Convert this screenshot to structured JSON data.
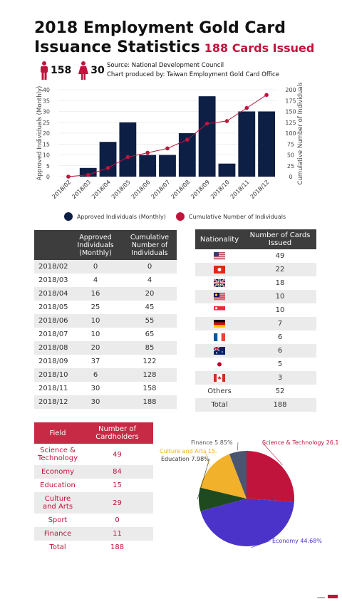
{
  "title": {
    "line1": "2018 Employment Gold Card",
    "line2": "Issuance Statistics",
    "sub": "188 Cards Issued"
  },
  "people": {
    "male": "158",
    "female": "30"
  },
  "source": {
    "line1": "Source: National Development Council",
    "line2": "Chart produced by: Taiwan Employment Gold Card Office"
  },
  "colors": {
    "bar": "#0e1f45",
    "line": "#c0143c",
    "accent": "#c72a45",
    "header": "#3d3d3d"
  },
  "chart_data": [
    {
      "type": "bar+line",
      "categories": [
        "2018/02",
        "2018/03",
        "2018/04",
        "2018/05",
        "2018/06",
        "2018/07",
        "2018/08",
        "2018/09",
        "2018/10",
        "2018/11",
        "2018/12"
      ],
      "series": [
        {
          "name": "Approved Individuals (Monthly)",
          "type": "bar",
          "axis": "left",
          "values": [
            0,
            4,
            16,
            25,
            10,
            10,
            20,
            37,
            6,
            30,
            30
          ]
        },
        {
          "name": "Cumulative Number of Individuals",
          "type": "line",
          "axis": "right",
          "values": [
            0,
            4,
            20,
            45,
            55,
            65,
            85,
            122,
            128,
            158,
            188
          ]
        }
      ],
      "ylabel": "Approved Individuals (Monthly)",
      "y2label": "Cumulative Number of Individuals",
      "ylim": [
        0,
        40
      ],
      "y2lim": [
        0,
        200
      ],
      "yticks": [
        "0",
        "5",
        "10",
        "15",
        "20",
        "25",
        "30",
        "35",
        "40"
      ],
      "y2ticks": [
        "0",
        "25",
        "50",
        "75",
        "100",
        "125",
        "150",
        "175",
        "200"
      ],
      "legend": "bottom"
    },
    {
      "type": "pie",
      "categories": [
        "Science & Technology",
        "Economy",
        "Education",
        "Culture and Arts",
        "Finance"
      ],
      "values": [
        26.1,
        44.68,
        7.98,
        15.43,
        5.85
      ],
      "colors": [
        "#c0143c",
        "#4b33c9",
        "#1f4a1f",
        "#f2b12a",
        "#4a5570"
      ],
      "labels": [
        "Science & Technology 26.1",
        "Economy 44.68%",
        "Education 7.98%",
        "Culture and Arts 15.",
        "Finance 5.85%"
      ]
    }
  ],
  "table1": {
    "headers": [
      "",
      "Approved Individuals (Monthly)",
      "Cumulative Number of Individuals"
    ],
    "rows": [
      [
        "2018/02",
        "0",
        "0"
      ],
      [
        "2018/03",
        "4",
        "4"
      ],
      [
        "2018/04",
        "16",
        "20"
      ],
      [
        "2018/05",
        "25",
        "45"
      ],
      [
        "2018/06",
        "10",
        "55"
      ],
      [
        "2018/07",
        "10",
        "65"
      ],
      [
        "2018/08",
        "20",
        "85"
      ],
      [
        "2018/09",
        "37",
        "122"
      ],
      [
        "2018/10",
        "6",
        "128"
      ],
      [
        "2018/11",
        "30",
        "158"
      ],
      [
        "2018/12",
        "30",
        "188"
      ]
    ]
  },
  "table2": {
    "headers": [
      "Nationality",
      "Number of Cards Issued"
    ],
    "rows": [
      {
        "flag": "usa",
        "value": "49"
      },
      {
        "flag": "hong-kong",
        "value": "22"
      },
      {
        "flag": "uk",
        "value": "18"
      },
      {
        "flag": "malaysia",
        "value": "10"
      },
      {
        "flag": "singapore",
        "value": "10"
      },
      {
        "flag": "germany",
        "value": "7"
      },
      {
        "flag": "france",
        "value": "6"
      },
      {
        "flag": "australia",
        "value": "6"
      },
      {
        "flag": "japan",
        "value": "5"
      },
      {
        "flag": "canada",
        "value": "3"
      },
      {
        "label": "Others",
        "value": "52"
      },
      {
        "label": "Total",
        "value": "188"
      }
    ]
  },
  "table3": {
    "headers": [
      "Field",
      "Number of Cardholders"
    ],
    "rows": [
      [
        "Science & Technology",
        "49"
      ],
      [
        "Economy",
        "84"
      ],
      [
        "Education",
        "15"
      ],
      [
        "Culture and Arts",
        "29"
      ],
      [
        "Sport",
        "0"
      ],
      [
        "Finance",
        "11"
      ],
      [
        "Total",
        "188"
      ]
    ]
  }
}
